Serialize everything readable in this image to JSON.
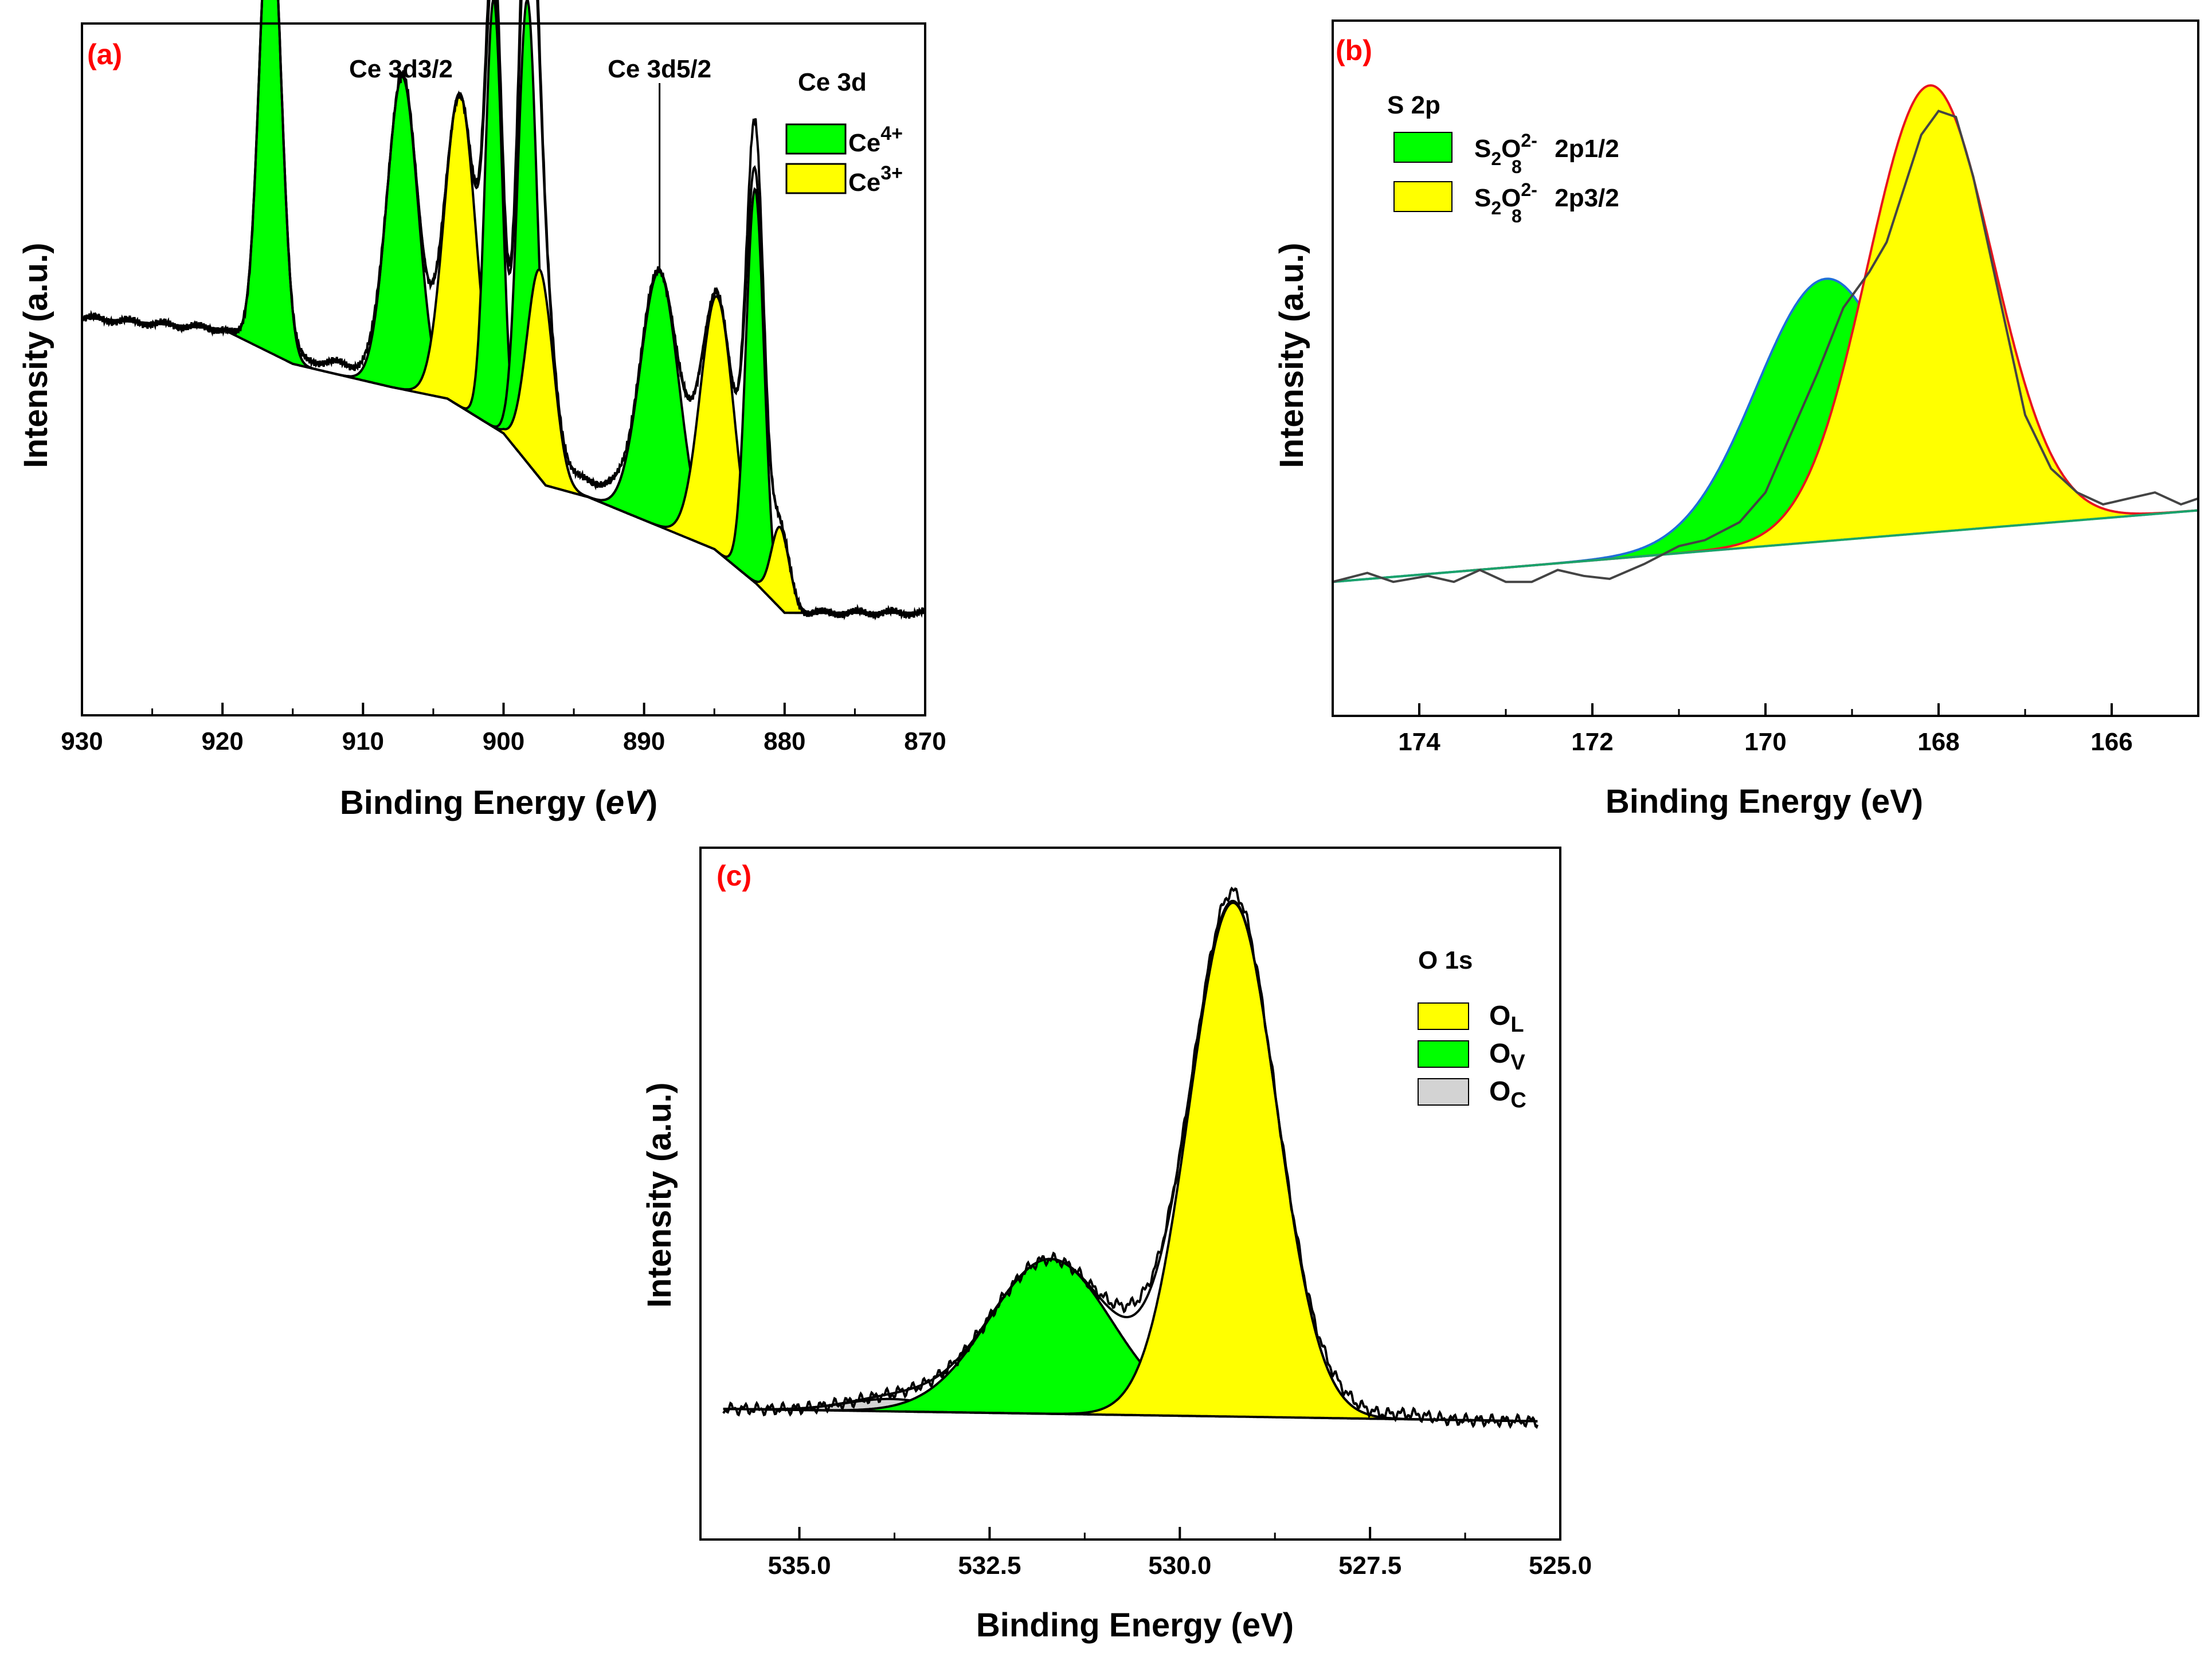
{
  "figure": {
    "colors": {
      "ce4": "#00ff00",
      "ce3": "#ffff00",
      "oc": "#d3d3d3",
      "panel_label": "#ff0000",
      "fit_blue": "#1f6fd8",
      "fit_red": "#e8141e",
      "baseline": "#1aa36b"
    }
  },
  "chart_data": [
    {
      "panel": "(a)",
      "type": "line",
      "title": "",
      "xlabel": "Binding Energy",
      "xlabel_unit": "eV",
      "xlabel_suffix_open": " (",
      "xlabel_suffix_close": ")",
      "ylabel": "Intensity (a.u.)",
      "xlim": [
        930,
        870
      ],
      "ylim": [
        0,
        100
      ],
      "xticks": [
        930,
        920,
        910,
        900,
        890,
        880,
        870
      ],
      "legend": {
        "title": "Ce 3d",
        "position": "top-right",
        "entries": [
          {
            "label": "Ce",
            "sup": "4+",
            "color": "#00ff00"
          },
          {
            "label": "Ce",
            "sup": "3+",
            "color": "#ffff00"
          }
        ]
      },
      "annotations": [
        {
          "text": "Ce 3d3/2",
          "x": 907.3
        },
        {
          "text": "Ce 3d5/2",
          "x": 888.9
        }
      ],
      "baseline": [
        [
          930,
          60
        ],
        [
          920,
          58
        ],
        [
          915,
          52
        ],
        [
          908,
          48
        ],
        [
          904,
          46
        ],
        [
          900,
          40
        ],
        [
          897,
          31
        ],
        [
          894,
          29
        ],
        [
          890,
          25
        ],
        [
          885,
          20
        ],
        [
          882,
          14
        ],
        [
          880,
          9
        ],
        [
          876,
          9
        ],
        [
          870,
          9
        ]
      ],
      "peaks": [
        {
          "center": 916.6,
          "height": 81,
          "fwhm": 1.8,
          "type": "Ce4+"
        },
        {
          "center": 907.2,
          "height": 54,
          "fwhm": 2.6,
          "type": "Ce4+"
        },
        {
          "center": 903.1,
          "height": 54,
          "fwhm": 2.6,
          "type": "Ce3+"
        },
        {
          "center": 900.7,
          "height": 74,
          "fwhm": 1.4,
          "type": "Ce4+"
        },
        {
          "center": 898.3,
          "height": 80,
          "fwhm": 1.6,
          "type": "Ce4+"
        },
        {
          "center": 897.4,
          "height": 36,
          "fwhm": 2.2,
          "type": "Ce3+"
        },
        {
          "center": 888.9,
          "height": 44,
          "fwhm": 3.2,
          "type": "Ce4+"
        },
        {
          "center": 884.8,
          "height": 44,
          "fwhm": 2.8,
          "type": "Ce3+"
        },
        {
          "center": 882.1,
          "height": 68,
          "fwhm": 1.5,
          "type": "Ce4+"
        },
        {
          "center": 880.3,
          "height": 14,
          "fwhm": 1.5,
          "type": "Ce3+"
        }
      ],
      "experimental_offset": [
        {
          "center": 900.7,
          "height": 6,
          "fwhm": 1.3
        },
        {
          "center": 898.3,
          "height": 8,
          "fwhm": 1.3
        },
        {
          "center": 882.1,
          "height": 8,
          "fwhm": 1.3
        },
        {
          "center": 911.5,
          "height": 2,
          "fwhm": 5
        },
        {
          "center": 893.5,
          "height": 3,
          "fwhm": 5
        }
      ]
    },
    {
      "panel": "(b)",
      "type": "line",
      "title": "",
      "xlabel": "Binding Energy (eV)",
      "ylabel": "Intensity (a.u.)",
      "xlim": [
        175,
        165
      ],
      "ylim": [
        0,
        100
      ],
      "xticks": [
        174,
        172,
        170,
        168,
        166
      ],
      "legend": {
        "title": "S 2p",
        "position": "top-left",
        "entries": [
          {
            "label": "S2O82- 2p1/2",
            "base": "S",
            "sub1": "2",
            "mid": "O",
            "sub2": "8",
            "sup": "2-",
            "tail": " 2p1/2",
            "color": "#00ff00"
          },
          {
            "label": "S2O82- 2p3/2",
            "base": "S",
            "sub1": "2",
            "mid": "O",
            "sub2": "8",
            "sup": "2-",
            "tail": " 2p3/2",
            "color": "#ffff00"
          }
        ]
      },
      "baseline": [
        [
          175,
          12
        ],
        [
          165,
          24
        ]
      ],
      "peaks": [
        {
          "center": 169.3,
          "height": 44,
          "fwhm": 1.9,
          "type": "2p1/2",
          "color": "#00ff00",
          "edge": "#1f6fd8"
        },
        {
          "center": 168.1,
          "height": 75,
          "fwhm": 1.7,
          "type": "2p3/2",
          "color": "#ffff00",
          "edge": "#e8141e"
        }
      ],
      "experimental": [
        [
          175,
          12
        ],
        [
          174.6,
          13.5
        ],
        [
          174.3,
          12
        ],
        [
          173.9,
          13
        ],
        [
          173.6,
          12
        ],
        [
          173.3,
          14
        ],
        [
          173.0,
          12
        ],
        [
          172.7,
          12
        ],
        [
          172.4,
          14
        ],
        [
          172.1,
          13
        ],
        [
          171.8,
          12.5
        ],
        [
          171.4,
          15
        ],
        [
          171.0,
          18
        ],
        [
          170.7,
          19
        ],
        [
          170.3,
          22
        ],
        [
          170.0,
          27
        ],
        [
          169.7,
          37
        ],
        [
          169.4,
          47
        ],
        [
          169.1,
          58
        ],
        [
          168.8,
          64
        ],
        [
          168.6,
          69
        ],
        [
          168.4,
          78
        ],
        [
          168.2,
          87
        ],
        [
          168.0,
          91
        ],
        [
          167.8,
          90
        ],
        [
          167.6,
          80
        ],
        [
          167.3,
          60
        ],
        [
          167.0,
          40
        ],
        [
          166.7,
          31
        ],
        [
          166.4,
          27
        ],
        [
          166.1,
          25
        ],
        [
          165.8,
          26
        ],
        [
          165.5,
          27
        ],
        [
          165.2,
          25
        ],
        [
          165,
          26
        ]
      ]
    },
    {
      "panel": "(c)",
      "type": "line",
      "title": "",
      "xlabel": "Binding Energy (eV)",
      "ylabel": "Intensity (a.u.)",
      "xlim": [
        536.3,
        525
      ],
      "ylim": [
        0,
        100
      ],
      "xticks": [
        535.0,
        532.5,
        530.0,
        527.5,
        525.0
      ],
      "legend": {
        "title": "O 1s",
        "position": "top-right",
        "entries": [
          {
            "label": "O",
            "sub": "L",
            "color": "#ffff00"
          },
          {
            "label": "O",
            "sub": "V",
            "color": "#00ff00"
          },
          {
            "label": "O",
            "sub": "C",
            "color": "#d3d3d3"
          }
        ]
      },
      "baseline": [
        [
          536.0,
          15
        ],
        [
          525.3,
          13
        ]
      ],
      "peaks": [
        {
          "center": 533.8,
          "height": 2,
          "fwhm": 1.4,
          "type": "OC",
          "color": "#d3d3d3"
        },
        {
          "center": 531.7,
          "height": 25,
          "fwhm": 1.9,
          "type": "OV",
          "color": "#00ff00"
        },
        {
          "center": 529.3,
          "height": 83,
          "fwhm": 1.35,
          "type": "OL",
          "color": "#ffff00"
        }
      ],
      "experimental_offset": [
        {
          "center": 529.3,
          "height": 1.5,
          "fwhm": 0.6
        },
        {
          "center": 530.6,
          "height": 2,
          "fwhm": 0.7
        },
        {
          "center": 528.0,
          "height": 1.5,
          "fwhm": 0.9
        },
        {
          "center": 527.0,
          "height": 0.8,
          "fwhm": 0.6
        }
      ]
    }
  ]
}
